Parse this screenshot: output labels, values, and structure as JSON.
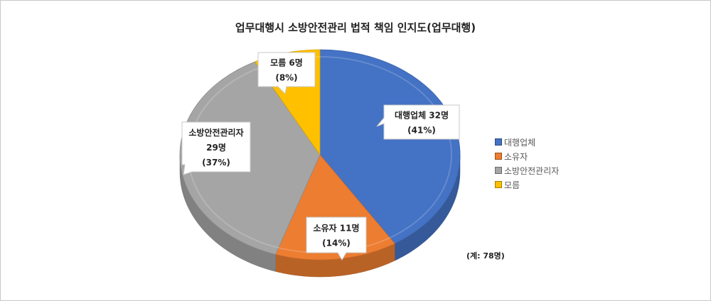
{
  "chart_data": {
    "type": "pie",
    "title": "업무대행시 소방안전관리 법적 책임 인지도(업무대행)",
    "categories": [
      "대행업체",
      "소유자",
      "소방안전관리자",
      "모름"
    ],
    "values": [
      32,
      11,
      29,
      6
    ],
    "percents": [
      41,
      14,
      37,
      8
    ],
    "data_labels": [
      {
        "name": "대행업체",
        "count": "32명",
        "pct": "(41%)"
      },
      {
        "name": "소유자",
        "count": "11명",
        "pct": "(14%)"
      },
      {
        "name": "소방안전관리자",
        "count": "29명",
        "pct": "(37%)"
      },
      {
        "name": "모름",
        "count": "6명",
        "pct": "(8%)"
      }
    ],
    "colors": [
      "#4472C4",
      "#ED7D31",
      "#A5A5A5",
      "#FFC000"
    ],
    "legend_position": "right",
    "total_note": "(계: 78명)"
  }
}
